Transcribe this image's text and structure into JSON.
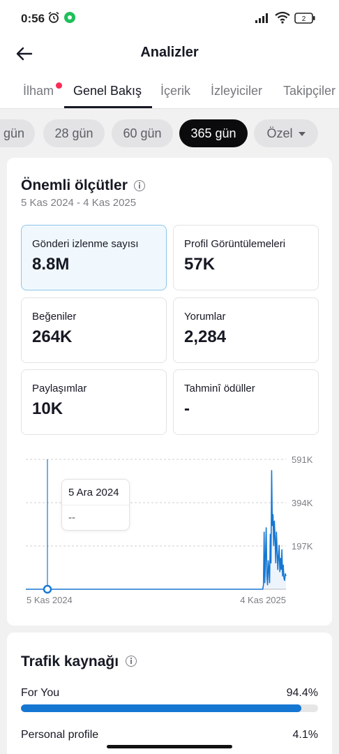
{
  "status_bar": {
    "time": "0:56",
    "battery": "2"
  },
  "header": {
    "title": "Analizler"
  },
  "tabs": [
    {
      "label": "İlham"
    },
    {
      "label": "Genel Bakış"
    },
    {
      "label": "İçerik"
    },
    {
      "label": "İzleyiciler"
    },
    {
      "label": "Takipçiler"
    }
  ],
  "active_tab": "Genel Bakış",
  "date_chips": [
    {
      "label": "gün"
    },
    {
      "label": "28 gün"
    },
    {
      "label": "60 gün"
    },
    {
      "label": "365 gün"
    },
    {
      "label": "Özel"
    }
  ],
  "active_chip": "365 gün",
  "key_metrics": {
    "title": "Önemli ölçütler",
    "date_range": "5 Kas 2024 - 4 Kas 2025",
    "items": [
      {
        "label": "Gönderi izlenme sayısı",
        "value": "8.8M"
      },
      {
        "label": "Profil Görüntülemeleri",
        "value": "57K"
      },
      {
        "label": "Beğeniler",
        "value": "264K"
      },
      {
        "label": "Yorumlar",
        "value": "2,284"
      },
      {
        "label": "Paylaşımlar",
        "value": "10K"
      },
      {
        "label": "Tahminî ödüller",
        "value": "-"
      }
    ]
  },
  "chart_data": {
    "type": "line",
    "x_labels": [
      "5 Kas 2024",
      "4 Kas 2025"
    ],
    "y_ticks": [
      "591K",
      "394K",
      "197K"
    ],
    "y_values": [
      591000,
      394000,
      197000
    ],
    "ylim": [
      0,
      591000
    ],
    "grid": true,
    "tooltip": {
      "date": "5 Ara 2024",
      "value": "--"
    },
    "color": "#1677d2",
    "series": [
      {
        "values": [
          0,
          0,
          0,
          0,
          0,
          0,
          0,
          0,
          0,
          0,
          0,
          0,
          0,
          0,
          0,
          0,
          0,
          0,
          0,
          0,
          0,
          0,
          0,
          0,
          0,
          0,
          0,
          0,
          0,
          0,
          0,
          0,
          0,
          0,
          0,
          0,
          0,
          0,
          0,
          0,
          0,
          0,
          0,
          0,
          0,
          0,
          0,
          0,
          0,
          0,
          0,
          0,
          0,
          0,
          0,
          0,
          0,
          0,
          0,
          0,
          0,
          0,
          0,
          0,
          0,
          0,
          0,
          0,
          0,
          0,
          0,
          0,
          0,
          0,
          0,
          0,
          0,
          0,
          0,
          0,
          0,
          0,
          0,
          0,
          0,
          0,
          0,
          0,
          0,
          0,
          0,
          0,
          0,
          0,
          0,
          0,
          0,
          0,
          0,
          0,
          0,
          0,
          0,
          0,
          0,
          0,
          0,
          0,
          0,
          0,
          0,
          0,
          0,
          0,
          0,
          0,
          0,
          0,
          0,
          0,
          0,
          0,
          0,
          0,
          0,
          0,
          0,
          0,
          0,
          0,
          0,
          0,
          0,
          0,
          0,
          0,
          0,
          0,
          0,
          0,
          0,
          0,
          0,
          0,
          0,
          0,
          0,
          0,
          0,
          0,
          0,
          0,
          0,
          0,
          0,
          0,
          0,
          0,
          0,
          0,
          0,
          0,
          0,
          0,
          0,
          0,
          0,
          0,
          0,
          0,
          0,
          0,
          0,
          0,
          0,
          0,
          0,
          0,
          0,
          0,
          0,
          0,
          0,
          0,
          0,
          0,
          0,
          0,
          0,
          0,
          0,
          0,
          0,
          0,
          0,
          0,
          0,
          0,
          0,
          0,
          0,
          0,
          0,
          0,
          0,
          0,
          0,
          0,
          0,
          0,
          0,
          0,
          0,
          0,
          0,
          0,
          0,
          0,
          0,
          0,
          0,
          0,
          0,
          0,
          0,
          0,
          0,
          0,
          0,
          0,
          0,
          0,
          0,
          0,
          0,
          0,
          0,
          0,
          0,
          0,
          0,
          0,
          0,
          0,
          0,
          0,
          0,
          0,
          0,
          0,
          0,
          0,
          0,
          0,
          0,
          0,
          0,
          0,
          0,
          0,
          0,
          0,
          0,
          0,
          0,
          0,
          0,
          0,
          0,
          0,
          0,
          0,
          0,
          0,
          0,
          0,
          0,
          0,
          0,
          0,
          0,
          0,
          0,
          0,
          0,
          0,
          0,
          0,
          0,
          0,
          0,
          0,
          0,
          0,
          0,
          0,
          0,
          0,
          0,
          0,
          0,
          0,
          0,
          0,
          0,
          0,
          0,
          0,
          0,
          0,
          0,
          0,
          0,
          0,
          0,
          0,
          0,
          0,
          0,
          0,
          0,
          0,
          0,
          0,
          0,
          0,
          0,
          0,
          0,
          0,
          0,
          0,
          0,
          0,
          0,
          0,
          0,
          0,
          0,
          0,
          0,
          0,
          0,
          0,
          0,
          0,
          0,
          0,
          20000,
          260000,
          30000,
          150000,
          280000,
          60000,
          20000,
          130000,
          90000,
          30000,
          250000,
          120000,
          540000,
          290000,
          340000,
          200000,
          310000,
          230000,
          120000,
          260000,
          180000,
          90000,
          150000,
          200000,
          80000,
          140000,
          90000,
          180000,
          60000,
          110000,
          50000,
          40000,
          70000,
          60000
        ]
      }
    ]
  },
  "traffic": {
    "title": "Trafik kaynağı",
    "rows": [
      {
        "label": "For You",
        "value": "94.4%",
        "fraction": 0.944
      },
      {
        "label": "Personal profile",
        "value": "4.1%",
        "fraction": 0.041
      }
    ]
  }
}
